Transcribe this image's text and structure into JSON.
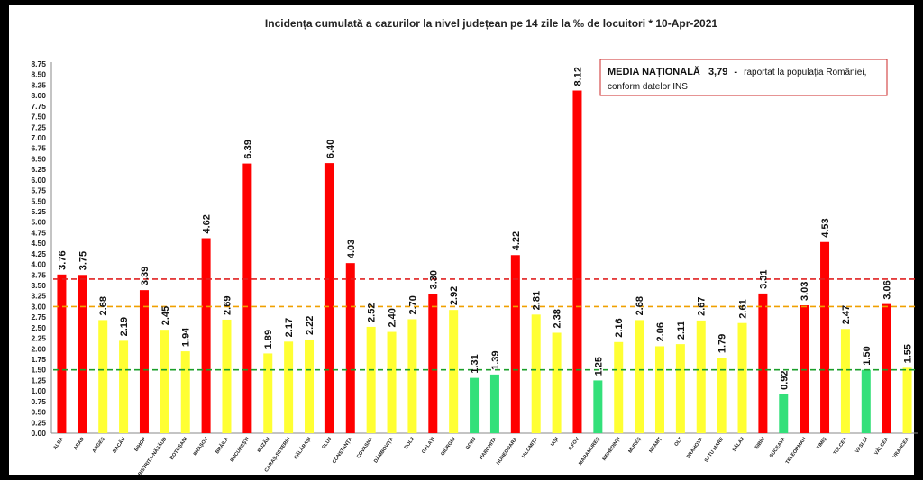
{
  "chart_data": {
    "type": "bar",
    "title": "Incidența cumulată a cazurilor la nivel județean pe 14 zile la ‰ de locuitori *   10-Apr-2021",
    "ylim": [
      0,
      8.75
    ],
    "ytick_step": 0.25,
    "categories": [
      "ALBA",
      "ARAD",
      "ARGEȘ",
      "BACĂU",
      "BIHOR",
      "BISTRIȚA-NĂSĂUD",
      "BOTOȘANI",
      "BRAȘOV",
      "BRĂILA",
      "BUCUREȘTI",
      "BUZĂU",
      "CARAȘ-SEVERIN",
      "CĂLĂRAȘI",
      "CLUJ",
      "CONSTANȚA",
      "COVASNA",
      "DÂMBOVIȚA",
      "DOLJ",
      "GALAȚI",
      "GIURGIU",
      "GORJ",
      "HARGHITA",
      "HUNEDOARA",
      "IALOMIȚA",
      "IAȘI",
      "ILFOV",
      "MARAMUREȘ",
      "MEHEDINȚI",
      "MUREȘ",
      "NEAMȚ",
      "OLT",
      "PRAHOVA",
      "SATU MARE",
      "SĂLAJ",
      "SIBIU",
      "SUCEAVA",
      "TELEORMAN",
      "TIMIȘ",
      "TULCEA",
      "VASLUI",
      "VÂLCEA",
      "VRANCEA"
    ],
    "values": [
      3.76,
      3.75,
      2.68,
      2.19,
      3.39,
      2.45,
      1.94,
      4.62,
      2.69,
      6.39,
      1.89,
      2.17,
      2.22,
      6.4,
      4.03,
      2.52,
      2.4,
      2.7,
      3.3,
      2.92,
      1.31,
      1.39,
      4.22,
      2.81,
      2.38,
      8.12,
      1.25,
      2.16,
      2.68,
      2.06,
      2.11,
      2.67,
      1.79,
      2.61,
      3.31,
      0.92,
      3.03,
      4.53,
      2.47,
      1.5,
      3.06,
      1.55
    ],
    "value_labels": [
      "3.76",
      "3.75",
      "2.68",
      "2.19",
      "3.39",
      "2.45",
      "1.94",
      "4.62",
      "2.69",
      "6.39",
      "1.89",
      "2.17",
      "2.22",
      "6.40",
      "4.03",
      "2.52",
      "2.40",
      "2.70",
      "3.30",
      "2.92",
      "1.31",
      "1.39",
      "4.22",
      "2.81",
      "2.38",
      "8.12",
      "1.25",
      "2.16",
      "2.68",
      "2.06",
      "2.11",
      "2.67",
      "1.79",
      "2.61",
      "3.31",
      "0.92",
      "3.03",
      "4.53",
      "2.47",
      "1.50",
      "3.06",
      "1.55"
    ],
    "reference_lines": [
      {
        "value": 3.65,
        "color": "#e02020"
      },
      {
        "value": 3.0,
        "color": "#f0a000"
      },
      {
        "value": 1.5,
        "color": "#1a9e2a"
      }
    ],
    "colors": {
      "red": "#ff0000",
      "yellow": "#ffff33",
      "green": "#33e07a"
    },
    "annotation": {
      "bold": "MEDIA NAȚIONALĂ",
      "value": "3,79",
      "dash": "-",
      "text1": "raportat la populația României,",
      "text2": "conform datelor INS"
    }
  }
}
